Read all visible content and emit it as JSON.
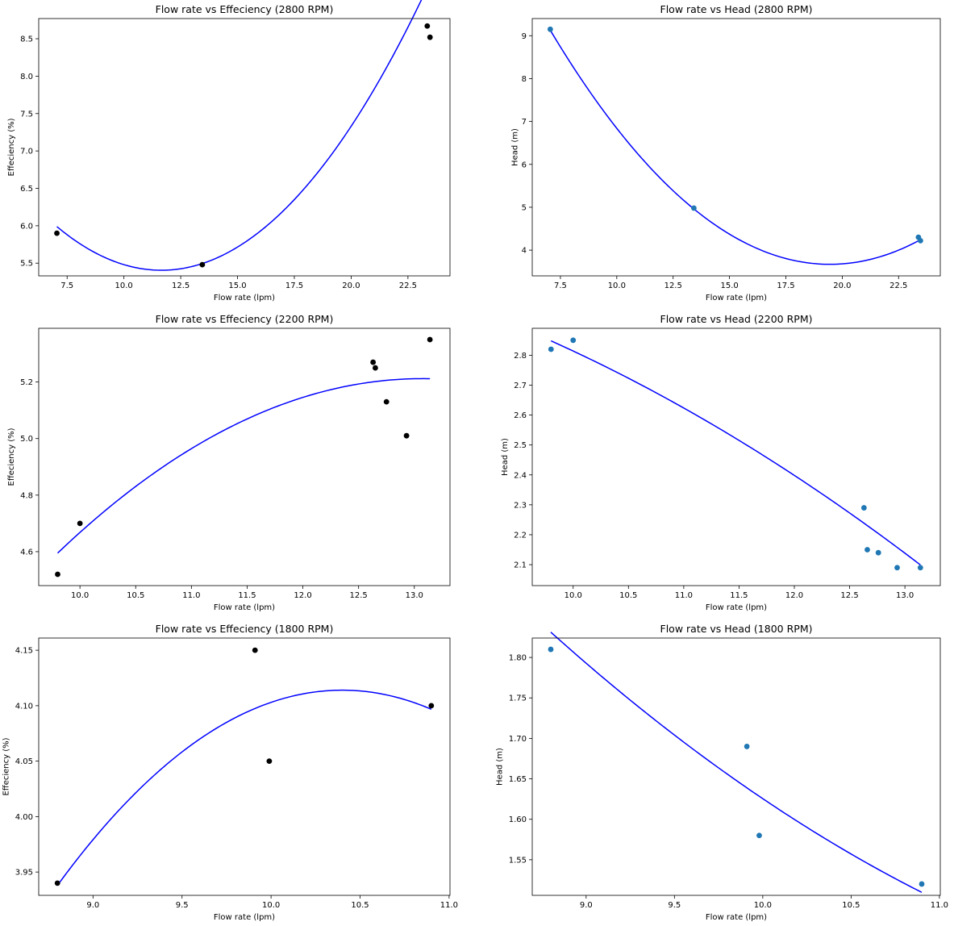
{
  "chart_data": [
    {
      "type": "scatter",
      "title": "Flow rate vs Effeciency (2800 RPM)",
      "xlabel": "Flow rate (lpm)",
      "ylabel": "Effeciency (%)",
      "xlim": [
        6.25,
        24.35
      ],
      "ylim": [
        5.33,
        8.77
      ],
      "xticks": [
        "7.5",
        "10.0",
        "12.5",
        "15.0",
        "17.5",
        "20.0",
        "22.5"
      ],
      "yticks": [
        "5.5",
        "6.0",
        "6.5",
        "7.0",
        "7.5",
        "8.0",
        "8.5"
      ],
      "marker_color": "#000000",
      "line_color": "#0000ff",
      "grid": false,
      "x": [
        7.05,
        13.45,
        23.35,
        23.47
      ],
      "y": [
        5.9,
        5.48,
        8.67,
        8.52
      ],
      "fit": {
        "degree": 2,
        "x_range": [
          7.05,
          23.47
        ],
        "coefficients": [
          0.0276,
          -0.643,
          9.15
        ]
      }
    },
    {
      "type": "scatter",
      "title": "Flow rate vs Head (2800 RPM)",
      "xlabel": "Flow rate (lpm)",
      "ylabel": "Head (m)",
      "xlim": [
        6.25,
        24.35
      ],
      "ylim": [
        3.4,
        9.4
      ],
      "xticks": [
        "7.5",
        "10.0",
        "12.5",
        "15.0",
        "17.5",
        "20.0",
        "22.5"
      ],
      "yticks": [
        "4",
        "5",
        "6",
        "7",
        "8",
        "9"
      ],
      "marker_color": "#1f77b4",
      "line_color": "#0000ff",
      "grid": false,
      "x": [
        7.05,
        13.42,
        23.38,
        23.47
      ],
      "y": [
        9.15,
        4.98,
        4.3,
        4.22
      ],
      "fit": {
        "degree": 2,
        "x_range": [
          7.05,
          23.47
        ],
        "coefficients": [
          0.0355,
          -1.381,
          17.1
        ]
      }
    },
    {
      "type": "scatter",
      "title": "Flow rate vs Effeciency (2200 RPM)",
      "xlabel": "Flow rate (lpm)",
      "ylabel": "Effeciency (%)",
      "xlim": [
        9.63,
        13.32
      ],
      "ylim": [
        4.48,
        5.39
      ],
      "xticks": [
        "10.0",
        "10.5",
        "11.0",
        "11.5",
        "12.0",
        "12.5",
        "13.0"
      ],
      "yticks": [
        "4.6",
        "4.8",
        "5.0",
        "5.2"
      ],
      "marker_color": "#000000",
      "line_color": "#0000ff",
      "grid": false,
      "x": [
        9.8,
        10.0,
        12.63,
        12.65,
        12.75,
        12.93,
        13.14
      ],
      "y": [
        4.52,
        4.7,
        5.27,
        5.25,
        5.13,
        5.01,
        5.35
      ],
      "fit": {
        "degree": 2,
        "x_range": [
          9.8,
          13.14
        ],
        "coefficients": [
          -0.0576,
          1.506,
          -4.632
        ]
      }
    },
    {
      "type": "scatter",
      "title": "Flow rate vs Head (2200 RPM)",
      "xlabel": "Flow rate (lpm)",
      "ylabel": "Head (m)",
      "xlim": [
        9.63,
        13.32
      ],
      "ylim": [
        2.03,
        2.89
      ],
      "xticks": [
        "10.0",
        "10.5",
        "11.0",
        "11.5",
        "12.0",
        "12.5",
        "13.0"
      ],
      "yticks": [
        "2.1",
        "2.2",
        "2.3",
        "2.4",
        "2.5",
        "2.6",
        "2.7",
        "2.8"
      ],
      "marker_color": "#1f77b4",
      "line_color": "#0000ff",
      "grid": false,
      "x": [
        9.8,
        10.0,
        12.63,
        12.66,
        12.76,
        12.93,
        13.14
      ],
      "y": [
        2.82,
        2.85,
        2.29,
        2.15,
        2.14,
        2.09,
        2.09
      ],
      "fit": {
        "degree": 2,
        "x_range": [
          9.8,
          13.14
        ],
        "coefficients": [
          -0.0174,
          0.175,
          2.804
        ]
      }
    },
    {
      "type": "scatter",
      "title": "Flow rate vs Effeciency (1800 RPM)",
      "xlabel": "Flow rate (lpm)",
      "ylabel": "Effeciency (%)",
      "xlim": [
        8.695,
        11.005
      ],
      "ylim": [
        3.929,
        4.161
      ],
      "xticks": [
        "9.0",
        "9.5",
        "10.0",
        "10.5",
        "11.0"
      ],
      "yticks": [
        "3.95",
        "4.00",
        "4.05",
        "4.10",
        "4.15"
      ],
      "marker_color": "#000000",
      "line_color": "#0000ff",
      "grid": false,
      "x": [
        8.8,
        9.91,
        9.99,
        10.9
      ],
      "y": [
        3.94,
        4.15,
        4.05,
        4.1
      ],
      "fit": {
        "degree": 2,
        "x_range": [
          8.8,
          10.9
        ],
        "coefficients": [
          -0.0688,
          1.431,
          -3.327
        ]
      }
    },
    {
      "type": "scatter",
      "title": "Flow rate vs Head (1800 RPM)",
      "xlabel": "Flow rate (lpm)",
      "ylabel": "Head (m)",
      "xlim": [
        8.695,
        11.005
      ],
      "ylim": [
        1.506,
        1.824
      ],
      "xticks": [
        "9.0",
        "9.5",
        "10.0",
        "10.5",
        "11.0"
      ],
      "yticks": [
        "1.55",
        "1.60",
        "1.65",
        "1.70",
        "1.75",
        "1.80"
      ],
      "marker_color": "#1f77b4",
      "line_color": "#0000ff",
      "grid": false,
      "x": [
        8.8,
        9.91,
        9.98,
        10.9
      ],
      "y": [
        1.81,
        1.69,
        1.58,
        1.52
      ],
      "fit": {
        "degree": 2,
        "x_range": [
          8.8,
          10.9
        ],
        "coefficients": [
          0.0204,
          -0.555,
          5.1355
        ]
      }
    }
  ]
}
